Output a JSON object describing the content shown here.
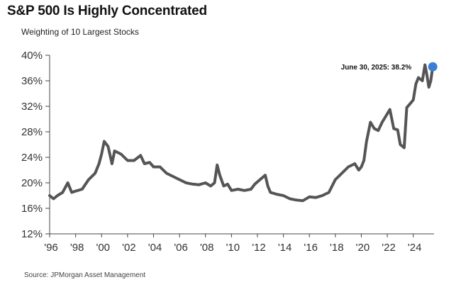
{
  "header": {
    "title": "S&P 500 Is Highly Concentrated",
    "subtitle": "Weighting of 10 Largest Stocks"
  },
  "footer": {
    "source": "Source: JPMorgan Asset Management"
  },
  "colors": {
    "line": "#555555",
    "marker": "#3a7fd5",
    "axis": "#444444"
  },
  "chart_data": {
    "type": "line",
    "title": "S&P 500 Is Highly Concentrated",
    "subtitle": "Weighting of 10 Largest Stocks",
    "xlabel": "",
    "ylabel": "",
    "y_unit": "%",
    "xlim": [
      1996,
      2025.6
    ],
    "ylim": [
      12,
      40
    ],
    "x_ticks": [
      1996,
      1998,
      2000,
      2002,
      2004,
      2006,
      2008,
      2010,
      2012,
      2014,
      2016,
      2018,
      2020,
      2022,
      2024
    ],
    "x_tick_labels": [
      "'96",
      "'98",
      "'00",
      "'02",
      "'04",
      "'06",
      "'08",
      "'10",
      "'12",
      "'14",
      "'16",
      "'18",
      "'20",
      "'22",
      "'24"
    ],
    "y_ticks": [
      12,
      16,
      20,
      24,
      28,
      32,
      36,
      40
    ],
    "y_tick_labels": [
      "12%",
      "16%",
      "20%",
      "24%",
      "28%",
      "32%",
      "36%",
      "40%"
    ],
    "grid": false,
    "series": [
      {
        "x": [
          1996.0,
          1996.3,
          1996.6,
          1997.0,
          1997.4,
          1997.7,
          1998.0,
          1998.5,
          1999.0,
          1999.5,
          1999.8,
          2000.0,
          2000.2,
          2000.5,
          2000.8,
          2001.0,
          2001.5,
          2002.0,
          2002.5,
          2003.0,
          2003.3,
          2003.7,
          2004.0,
          2004.5,
          2005.0,
          2005.5,
          2006.0,
          2006.5,
          2007.0,
          2007.5,
          2008.0,
          2008.4,
          2008.7,
          2008.9,
          2009.1,
          2009.4,
          2009.7,
          2010.0,
          2010.5,
          2011.0,
          2011.5,
          2011.8,
          2012.2,
          2012.6,
          2012.8,
          2013.0,
          2013.5,
          2014.0,
          2014.5,
          2015.0,
          2015.5,
          2016.0,
          2016.5,
          2017.0,
          2017.5,
          2018.0,
          2018.5,
          2019.0,
          2019.5,
          2019.8,
          2020.0,
          2020.2,
          2020.4,
          2020.7,
          2021.0,
          2021.3,
          2021.6,
          2021.9,
          2022.2,
          2022.5,
          2022.8,
          2023.0,
          2023.3,
          2023.5,
          2023.8,
          2024.0,
          2024.2,
          2024.4,
          2024.7,
          2024.9,
          2025.0,
          2025.2,
          2025.35,
          2025.5
        ],
        "values": [
          18.0,
          17.5,
          18.0,
          18.5,
          20.0,
          18.5,
          18.7,
          19.0,
          20.5,
          21.5,
          23.0,
          24.5,
          26.5,
          25.7,
          23.0,
          25.0,
          24.5,
          23.5,
          23.5,
          24.3,
          23.0,
          23.2,
          22.5,
          22.5,
          21.5,
          21.0,
          20.5,
          20.0,
          19.8,
          19.7,
          20.0,
          19.5,
          20.0,
          22.8,
          21.2,
          19.5,
          19.8,
          18.8,
          19.0,
          18.8,
          19.0,
          19.8,
          20.5,
          21.2,
          19.5,
          18.5,
          18.2,
          18.0,
          17.5,
          17.3,
          17.2,
          17.8,
          17.7,
          18.0,
          18.5,
          20.5,
          21.5,
          22.5,
          23.0,
          22.0,
          22.5,
          23.5,
          26.5,
          29.5,
          28.5,
          28.2,
          29.5,
          30.5,
          31.5,
          28.5,
          28.3,
          26.0,
          25.5,
          31.8,
          32.5,
          33.0,
          35.5,
          36.5,
          36.0,
          38.5,
          37.5,
          35.0,
          36.0,
          38.2
        ]
      }
    ],
    "annotation": {
      "label": "June 30, 2025: 38.2%",
      "x": 2025.5,
      "y": 38.2
    }
  }
}
